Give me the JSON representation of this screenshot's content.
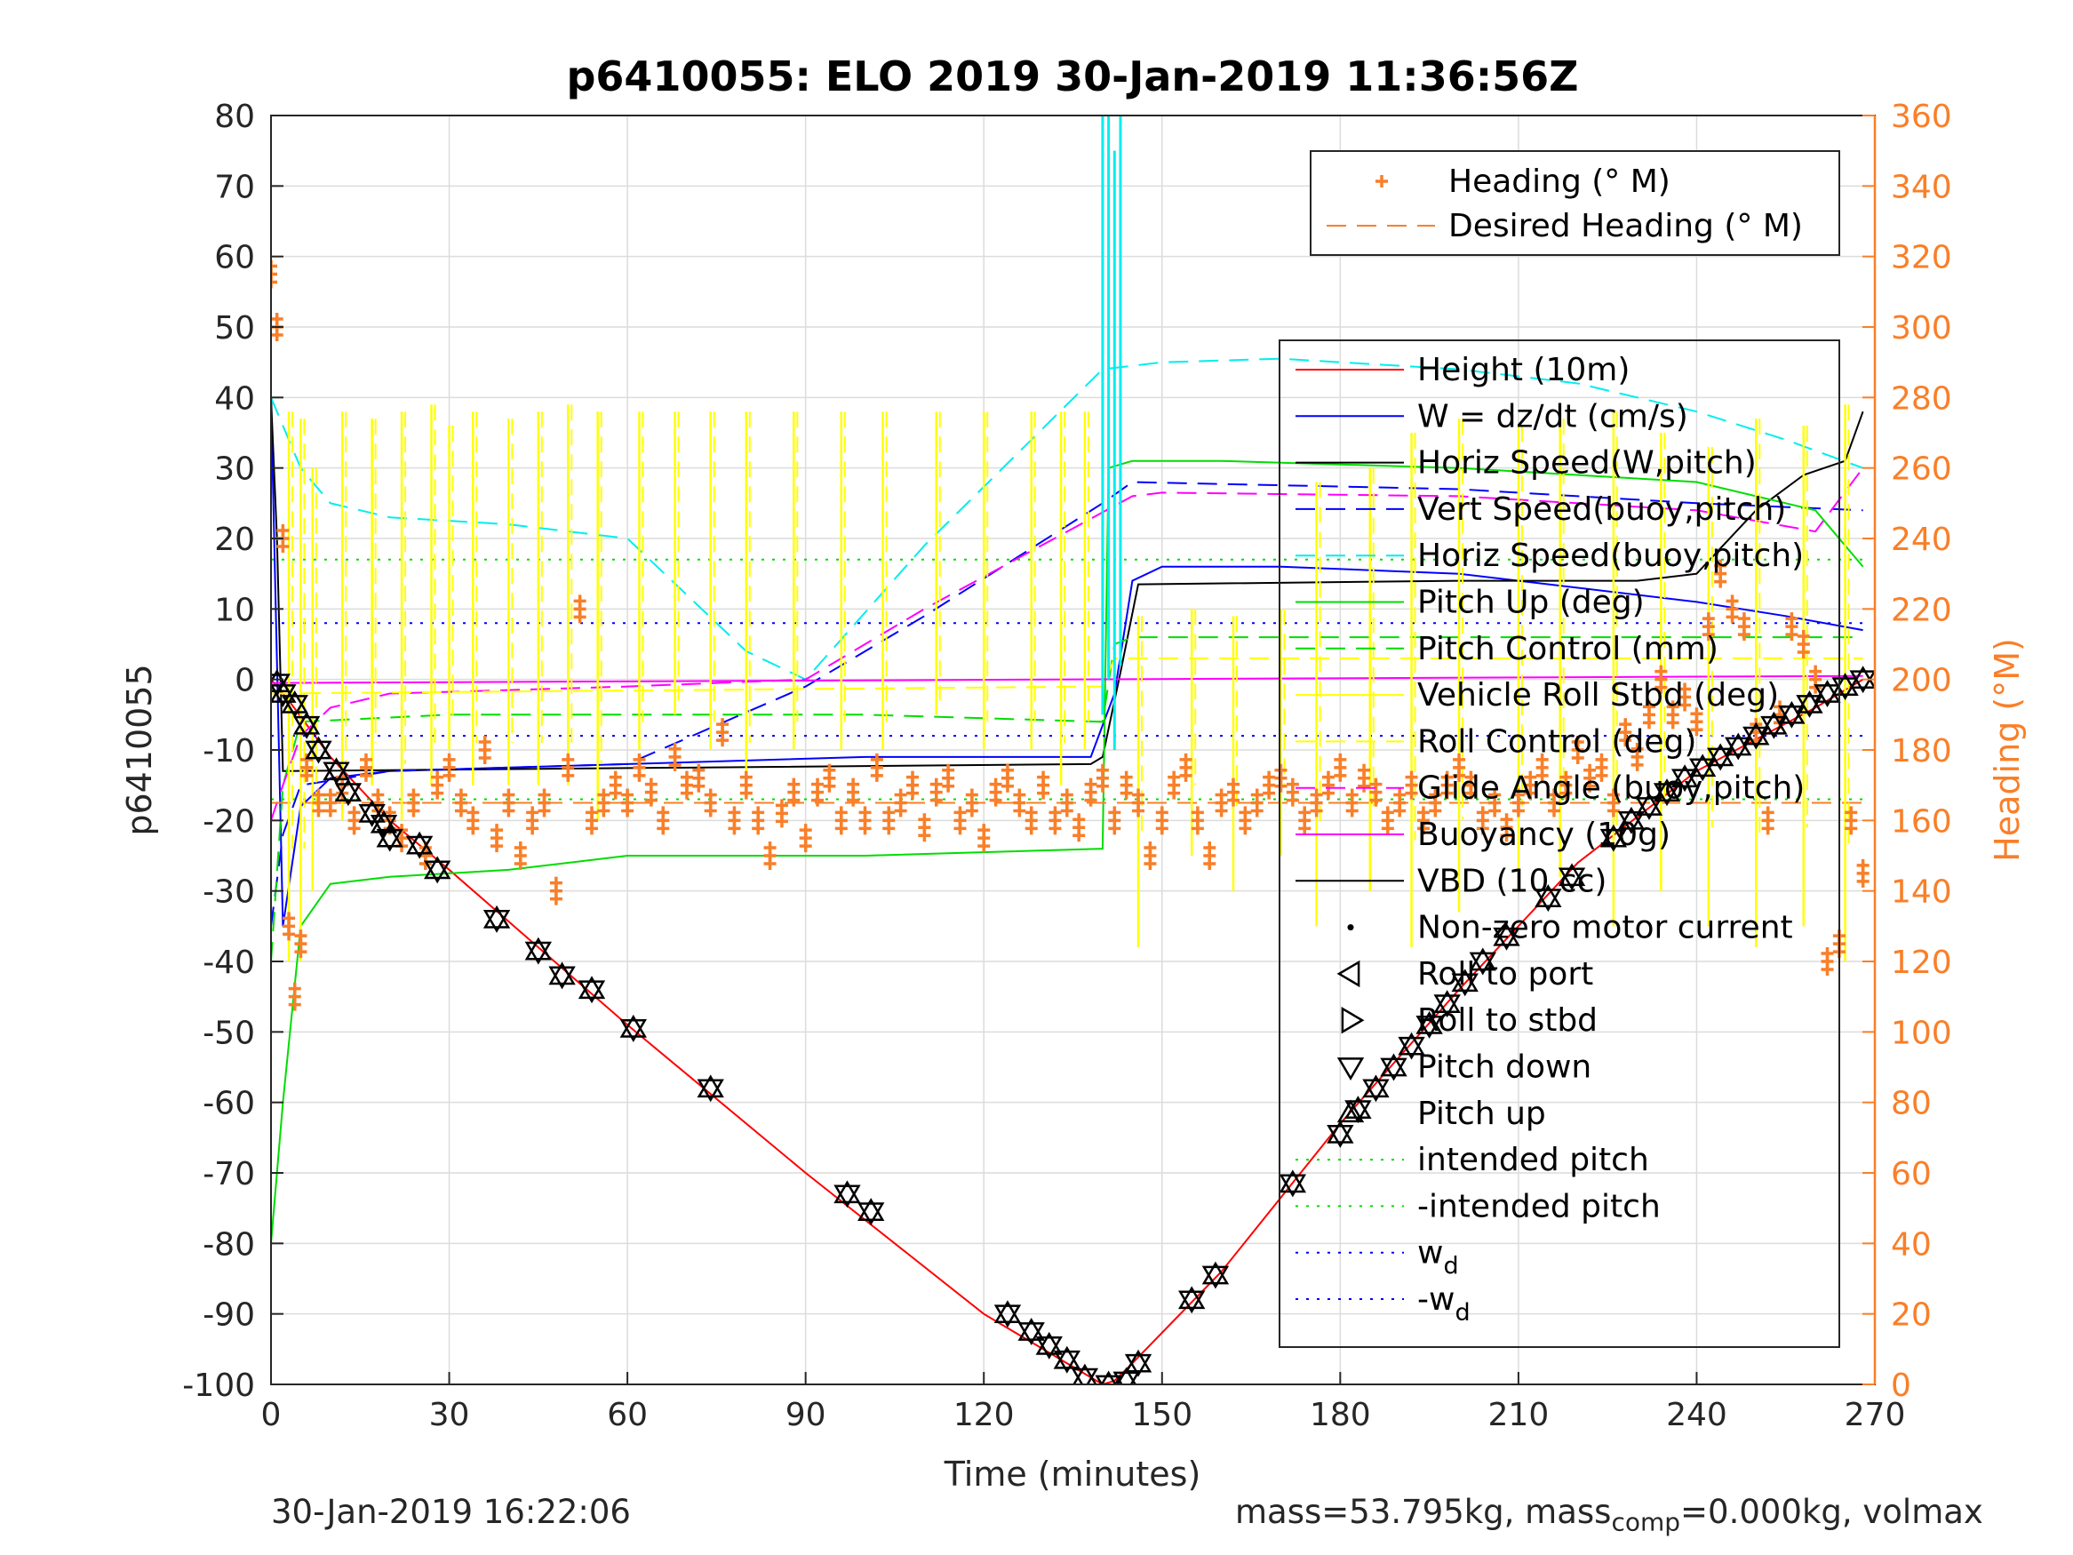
{
  "chart_data": {
    "type": "line",
    "title": "p6410055: ELO 2019 30-Jan-2019 11:36:56Z",
    "xlabel": "Time (minutes)",
    "ylabel": "p6410055",
    "y2label": "Heading (°M)",
    "xlim": [
      0,
      270
    ],
    "ylim": [
      -100,
      80
    ],
    "y2lim": [
      0,
      360
    ],
    "xticks": [
      "0",
      "30",
      "60",
      "90",
      "120",
      "150",
      "180",
      "210",
      "240",
      "270"
    ],
    "yticks": [
      "-100",
      "-90",
      "-80",
      "-70",
      "-60",
      "-50",
      "-40",
      "-30",
      "-20",
      "-10",
      "0",
      "10",
      "20",
      "30",
      "40",
      "50",
      "60",
      "70",
      "80"
    ],
    "y2ticks": [
      "0",
      "20",
      "40",
      "60",
      "80",
      "100",
      "120",
      "140",
      "160",
      "180",
      "200",
      "220",
      "240",
      "260",
      "280",
      "300",
      "320",
      "340",
      "360"
    ],
    "grid": true,
    "legend_heading": [
      {
        "label": "Heading (° M)",
        "color": "#f97f28",
        "style": "plus"
      },
      {
        "label": "Desired Heading (° M)",
        "color": "#f97f28",
        "style": "dashed"
      }
    ],
    "legend_main": [
      {
        "label": "Height (10m)",
        "color": "#ff0000",
        "style": "solid"
      },
      {
        "label": "W = dz/dt (cm/s)",
        "color": "#0000ff",
        "style": "solid"
      },
      {
        "label": "Horiz Speed(W,pitch)",
        "color": "#000000",
        "style": "solid"
      },
      {
        "label": "Vert Speed(buoy,pitch)",
        "color": "#0000ff",
        "style": "dashed"
      },
      {
        "label": "Horiz Speed(buoy,pitch)",
        "color": "#00eeee",
        "style": "dashed"
      },
      {
        "label": "Pitch Up (deg)",
        "color": "#00dd00",
        "style": "solid"
      },
      {
        "label": "Pitch Control (mm)",
        "color": "#00dd00",
        "style": "dashed"
      },
      {
        "label": "Vehicle Roll Stbd (deg)",
        "color": "#ffff00",
        "style": "solid"
      },
      {
        "label": "Roll Control (deg)",
        "color": "#ffff00",
        "style": "dashed"
      },
      {
        "label": "Glide Angle (buoy,pitch)",
        "color": "#ff00ff",
        "style": "dashed"
      },
      {
        "label": "Buoyancy (10g)",
        "color": "#ff00ff",
        "style": "solid"
      },
      {
        "label": "VBD (10 cc)",
        "color": "#000000",
        "style": "solid"
      },
      {
        "label": "Non-zero motor current",
        "color": "#000000",
        "style": "dot"
      },
      {
        "label": "Roll to port",
        "color": "#000000",
        "style": "tri-left"
      },
      {
        "label": "Roll to stbd",
        "color": "#000000",
        "style": "tri-right"
      },
      {
        "label": "Pitch down",
        "color": "#000000",
        "style": "tri-down"
      },
      {
        "label": "Pitch up",
        "color": "#000000",
        "style": "tri-up"
      },
      {
        "label": "intended pitch",
        "color": "#00dd00",
        "style": "dotted"
      },
      {
        "label": "-intended pitch",
        "color": "#00dd00",
        "style": "dotted"
      },
      {
        "label": "w",
        "sub": "d",
        "color": "#0000ff",
        "style": "dotted"
      },
      {
        "label": "-w",
        "sub": "d",
        "color": "#0000ff",
        "style": "dotted"
      }
    ],
    "series": [
      {
        "name": "Height (10m)",
        "color": "#ff0000",
        "x": [
          0,
          3,
          10,
          20,
          30,
          60,
          90,
          120,
          140,
          142,
          145,
          160,
          180,
          200,
          220,
          240,
          260,
          268
        ],
        "y": [
          0,
          -3,
          -11,
          -20,
          -27,
          -49,
          -70,
          -90,
          -100,
          -99.5,
          -97,
          -84,
          -63,
          -44,
          -26,
          -13,
          -4,
          0
        ]
      },
      {
        "name": "W = dz/dt (cm/s)",
        "color": "#0000ff",
        "x": [
          0,
          2,
          5,
          10,
          20,
          40,
          60,
          80,
          100,
          120,
          138,
          142,
          145,
          150,
          170,
          200,
          220,
          240,
          255,
          268
        ],
        "y": [
          40,
          -35,
          -18,
          -14,
          -13,
          -12.5,
          -12,
          -11.5,
          -11,
          -11,
          -11,
          -2,
          14,
          16,
          16,
          15,
          13,
          11,
          9,
          7
        ]
      },
      {
        "name": "Horiz Speed(W,pitch)",
        "color": "#000000",
        "x": [
          0,
          1,
          2,
          138,
          140,
          143,
          146,
          200,
          230,
          240,
          250,
          258,
          265,
          268
        ],
        "y": [
          40,
          20,
          -13,
          -12,
          -11,
          1,
          13.5,
          14,
          14,
          15,
          24,
          29,
          31,
          38
        ]
      },
      {
        "name": "Vert Speed(buoy,pitch)",
        "color": "#0000ff",
        "x": [
          0,
          2,
          5,
          20,
          60,
          90,
          110,
          140,
          145,
          200,
          240,
          268
        ],
        "y": [
          -35,
          -22,
          -15,
          -13,
          -12,
          -1,
          9,
          25,
          28,
          27,
          25,
          24
        ]
      },
      {
        "name": "Horiz Speed(buoy,pitch)",
        "color": "#00eeee",
        "x": [
          0,
          5,
          10,
          20,
          40,
          60,
          80,
          90,
          110,
          140,
          150,
          170,
          200,
          220,
          240,
          255,
          268
        ],
        "y": [
          40,
          30,
          25,
          23,
          22,
          20,
          4,
          0,
          19,
          44,
          45,
          45.5,
          44,
          42,
          38,
          34,
          30
        ]
      },
      {
        "name": "Pitch Up (deg)",
        "color": "#00dd00",
        "x": [
          0,
          2,
          5,
          10,
          20,
          40,
          60,
          100,
          140,
          141,
          145,
          160,
          200,
          240,
          260,
          268
        ],
        "y": [
          -80,
          -60,
          -35,
          -29,
          -28,
          -27,
          -25,
          -25,
          -24,
          30,
          31,
          31,
          30,
          28,
          24,
          16
        ]
      },
      {
        "name": "Pitch Control (mm)",
        "color": "#00dd00",
        "x": [
          0,
          2,
          5,
          30,
          60,
          100,
          140,
          142,
          145,
          200,
          240,
          268
        ],
        "y": [
          -40,
          -15,
          -6,
          -5,
          -5,
          -5,
          -6,
          5,
          6,
          6,
          6,
          6
        ]
      },
      {
        "name": "Glide Angle (buoy,pitch)",
        "color": "#ff00ff",
        "x": [
          0,
          2,
          5,
          10,
          20,
          40,
          60,
          90,
          110,
          145,
          150,
          200,
          240,
          260,
          268
        ],
        "y": [
          -20,
          -15,
          -8,
          -4,
          -2,
          -1.5,
          -1,
          0,
          10,
          26,
          26.5,
          26,
          24,
          21,
          30
        ]
      },
      {
        "name": "Buoyancy (10g)",
        "color": "#ff00ff",
        "x": [
          0,
          268
        ],
        "y": [
          -0.5,
          0.5
        ]
      },
      {
        "name": "Roll Control (deg)",
        "color": "#ffff00",
        "x": [
          0,
          140,
          142,
          268
        ],
        "y": [
          -2,
          -1,
          3,
          3
        ]
      },
      {
        "name": "intended pitch",
        "color": "#00dd00",
        "x": [
          0,
          268
        ],
        "y": [
          17,
          17
        ]
      },
      {
        "name": "-intended pitch",
        "color": "#00dd00",
        "x": [
          0,
          268
        ],
        "y": [
          -17,
          -17
        ]
      },
      {
        "name": "w_d",
        "color": "#0000ff",
        "x": [
          0,
          268
        ],
        "y": [
          8,
          8
        ]
      },
      {
        "name": "-w_d",
        "color": "#0000ff",
        "x": [
          0,
          268
        ],
        "y": [
          -8,
          -8
        ]
      },
      {
        "name": "Desired Heading (° M)",
        "color": "#f97f28",
        "axis": "right",
        "x": [
          0,
          268
        ],
        "y": [
          165,
          165
        ]
      }
    ],
    "roll_spikes": {
      "name": "Vehicle Roll Stbd (deg)",
      "color": "#ffff00",
      "x": [
        3,
        5,
        7,
        12,
        17,
        22,
        27,
        30,
        34,
        40,
        45,
        50,
        55,
        62,
        68,
        74,
        80,
        88,
        96,
        103,
        112,
        120,
        128,
        133,
        137,
        146,
        155,
        162,
        170,
        176,
        185,
        192,
        200,
        210,
        217,
        226,
        234,
        242,
        250,
        258,
        265
      ],
      "top": [
        38,
        37,
        30,
        38,
        37,
        38,
        39,
        36,
        38,
        37,
        38,
        39,
        38,
        38,
        38,
        38,
        38,
        38,
        38,
        38,
        38,
        38,
        38,
        38,
        38,
        9,
        10,
        9,
        10,
        28,
        30,
        35,
        37,
        36,
        37,
        38,
        35,
        33,
        37,
        36,
        39
      ],
      "bottom": [
        -40,
        -40,
        -30,
        -20,
        -15,
        -20,
        -15,
        -10,
        -15,
        -15,
        -15,
        -15,
        -20,
        -10,
        -5,
        -10,
        -15,
        -10,
        -10,
        -10,
        -5,
        -10,
        -10,
        -15,
        -10,
        -38,
        -25,
        -30,
        -25,
        -35,
        -30,
        -38,
        -33,
        -30,
        -28,
        -35,
        -30,
        -35,
        -38,
        -35,
        -40
      ]
    },
    "cyan_spike": {
      "x": [
        140,
        141,
        142,
        143
      ],
      "top": [
        80,
        80,
        75,
        80
      ],
      "bottom": [
        -5,
        0,
        -10,
        2
      ]
    },
    "heading_markers": {
      "name": "Heading (° M)",
      "color": "#f97f28",
      "axis": "right",
      "x": [
        0,
        1,
        2,
        3,
        4,
        5,
        6,
        8,
        10,
        12,
        14,
        16,
        18,
        20,
        22,
        24,
        26,
        28,
        30,
        32,
        34,
        36,
        38,
        40,
        42,
        44,
        46,
        48,
        50,
        52,
        54,
        56,
        58,
        60,
        62,
        64,
        66,
        68,
        70,
        72,
        74,
        76,
        78,
        80,
        82,
        84,
        86,
        88,
        90,
        92,
        94,
        96,
        98,
        100,
        102,
        104,
        106,
        108,
        110,
        112,
        114,
        116,
        118,
        120,
        122,
        124,
        126,
        128,
        130,
        132,
        134,
        136,
        138,
        140,
        142,
        144,
        146,
        148,
        150,
        152,
        154,
        156,
        158,
        160,
        162,
        164,
        166,
        168,
        170,
        172,
        174,
        176,
        178,
        180,
        182,
        184,
        186,
        188,
        190,
        192,
        194,
        196,
        198,
        200,
        202,
        204,
        206,
        208,
        210,
        212,
        214,
        216,
        218,
        220,
        222,
        224,
        226,
        228,
        230,
        232,
        234,
        236,
        238,
        240,
        242,
        244,
        246,
        248,
        250,
        252,
        254,
        256,
        258,
        260,
        262,
        264,
        266,
        268
      ],
      "y": [
        315,
        300,
        240,
        130,
        110,
        125,
        175,
        165,
        165,
        170,
        160,
        175,
        165,
        160,
        155,
        165,
        150,
        170,
        175,
        165,
        160,
        180,
        155,
        165,
        150,
        160,
        165,
        140,
        175,
        220,
        160,
        165,
        170,
        165,
        175,
        168,
        160,
        178,
        170,
        172,
        165,
        185,
        160,
        170,
        160,
        150,
        162,
        168,
        155,
        168,
        172,
        160,
        168,
        160,
        175,
        160,
        165,
        170,
        158,
        168,
        172,
        160,
        165,
        155,
        168,
        172,
        165,
        160,
        170,
        160,
        165,
        158,
        168,
        172,
        160,
        170,
        165,
        150,
        160,
        170,
        175,
        160,
        150,
        165,
        168,
        160,
        165,
        170,
        172,
        168,
        160,
        165,
        170,
        175,
        165,
        172,
        168,
        160,
        165,
        170,
        160,
        165,
        170,
        175,
        170,
        160,
        165,
        158,
        165,
        170,
        175,
        165,
        170,
        180,
        172,
        175,
        165,
        185,
        178,
        190,
        200,
        190,
        195,
        188,
        215,
        230,
        220,
        215,
        185,
        160,
        190,
        215,
        210,
        200,
        120,
        125,
        160,
        145
      ]
    },
    "motor_markers": {
      "x": [
        1,
        2,
        4,
        6,
        8,
        11,
        13,
        17,
        19,
        20,
        25,
        28,
        38,
        45,
        49,
        54,
        61,
        74,
        97,
        101,
        124,
        128,
        131,
        134,
        137,
        141,
        144,
        146,
        155,
        159,
        172,
        180,
        183,
        186,
        189,
        192,
        195,
        198,
        201,
        204,
        208,
        215,
        219,
        226,
        229,
        232,
        235,
        238,
        241,
        244,
        247,
        250,
        253,
        256,
        259,
        262,
        265,
        268
      ],
      "y": [
        -0.5,
        -2,
        -3.5,
        -6.5,
        -10,
        -13,
        -16,
        -19,
        -20.5,
        -22.5,
        -23.5,
        -27,
        -34,
        -38.5,
        -42,
        -44,
        -49.5,
        -58,
        -73,
        -75.5,
        -90,
        -92.5,
        -94.5,
        -96.5,
        -99,
        -100,
        -99.5,
        -97,
        -88,
        -84.5,
        -71.5,
        -64.5,
        -61,
        -58,
        -55,
        -52,
        -49,
        -46,
        -43,
        -40,
        -36.5,
        -31,
        -28,
        -22.5,
        -20,
        -18,
        -16,
        -14,
        -12.5,
        -11,
        -9.5,
        -8,
        -6.5,
        -5,
        -3.5,
        -2,
        -1,
        0
      ]
    }
  },
  "footer": {
    "timestamp": "30-Jan-2019 16:22:06",
    "mass_prefix": "mass=53.795kg, mass",
    "mass_sub": "comp",
    "mass_suffix": "=0.000kg, volmax"
  }
}
